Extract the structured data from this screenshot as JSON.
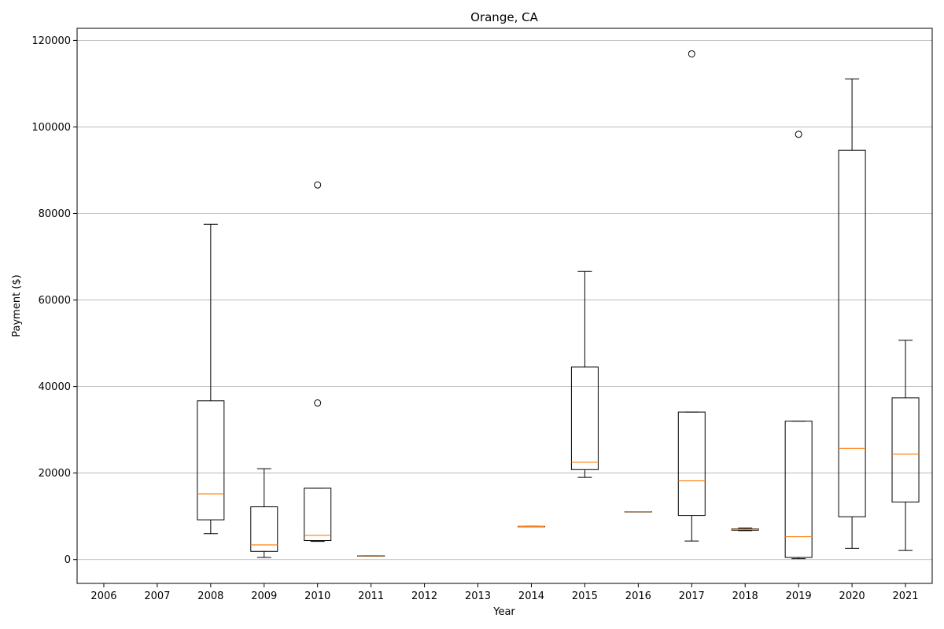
{
  "chart_data": {
    "type": "boxplot",
    "title": "Orange, CA",
    "xlabel": "Year",
    "ylabel": "Payment ($)",
    "ylim": [
      -5500,
      122800
    ],
    "yticks": [
      0,
      20000,
      40000,
      60000,
      80000,
      100000,
      120000
    ],
    "grid": "y",
    "colors": {
      "box": "#000000",
      "median": "#ff7f0e",
      "grid": "#b0b0b0"
    },
    "categories": [
      "2006",
      "2007",
      "2008",
      "2009",
      "2010",
      "2011",
      "2012",
      "2013",
      "2014",
      "2015",
      "2016",
      "2017",
      "2018",
      "2019",
      "2020",
      "2021"
    ],
    "boxes": [
      null,
      null,
      {
        "whislo": 6000,
        "q1": 9200,
        "med": 15200,
        "q3": 36700,
        "whishi": 77500,
        "fliers": []
      },
      {
        "whislo": 500,
        "q1": 1900,
        "med": 3400,
        "q3": 12200,
        "whishi": 21000,
        "fliers": []
      },
      {
        "whislo": 4200,
        "q1": 4400,
        "med": 5600,
        "q3": 16500,
        "whishi": 16500,
        "fliers": [
          86600,
          36200
        ]
      },
      {
        "whislo": 900,
        "q1": 900,
        "med": 900,
        "q3": 900,
        "whishi": 900,
        "fliers": []
      },
      null,
      null,
      {
        "whislo": 7700,
        "q1": 7700,
        "med": 7700,
        "q3": 7700,
        "whishi": 7700,
        "fliers": []
      },
      {
        "whislo": 19000,
        "q1": 20800,
        "med": 22500,
        "q3": 44500,
        "whishi": 66600,
        "fliers": []
      },
      {
        "whislo": 11100,
        "q1": 11100,
        "med": 11100,
        "q3": 11100,
        "whishi": 11100,
        "fliers": []
      },
      {
        "whislo": 4300,
        "q1": 10200,
        "med": 18200,
        "q3": 34100,
        "whishi": 34100,
        "fliers": [
          116900
        ]
      },
      {
        "whislo": 6700,
        "q1": 6800,
        "med": 7000,
        "q3": 7100,
        "whishi": 7300,
        "fliers": []
      },
      {
        "whislo": 200,
        "q1": 500,
        "med": 5300,
        "q3": 32000,
        "whishi": 32000,
        "fliers": [
          98300
        ]
      },
      {
        "whislo": 2600,
        "q1": 9900,
        "med": 25700,
        "q3": 94600,
        "whishi": 111100,
        "fliers": []
      },
      {
        "whislo": 2100,
        "q1": 13300,
        "med": 24400,
        "q3": 37400,
        "whishi": 50700,
        "fliers": []
      }
    ]
  }
}
